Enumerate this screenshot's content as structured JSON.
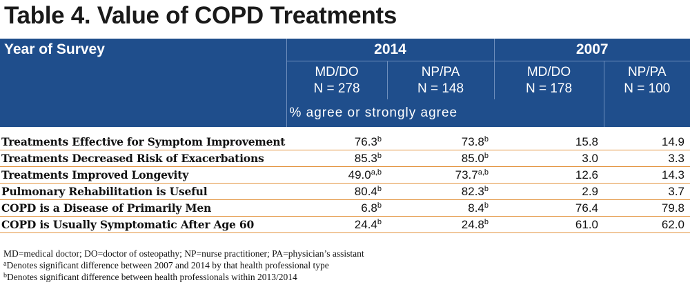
{
  "title": "Table 4. Value of COPD Treatments",
  "header": {
    "year_label": "Year of Survey",
    "years": [
      "2014",
      "2007"
    ],
    "groups": [
      {
        "role": "MD/DO",
        "n": "N = 278"
      },
      {
        "role": "NP/PA",
        "n": "N = 148"
      },
      {
        "role": "MD/DO",
        "n": "N = 178"
      },
      {
        "role": "NP/PA",
        "n": "N = 100"
      }
    ],
    "measure": "% agree or strongly agree"
  },
  "rows": [
    {
      "label": "Treatments Effective for Symptom Improvement",
      "cells": [
        {
          "v": "76.3",
          "s": "b"
        },
        {
          "v": "73.8",
          "s": "b"
        },
        {
          "v": "15.8",
          "s": ""
        },
        {
          "v": "14.9",
          "s": ""
        }
      ]
    },
    {
      "label": "Treatments Decreased Risk of Exacerbations",
      "cells": [
        {
          "v": "85.3",
          "s": "b"
        },
        {
          "v": "85.0",
          "s": "b"
        },
        {
          "v": "3.0",
          "s": ""
        },
        {
          "v": "3.3",
          "s": ""
        }
      ]
    },
    {
      "label": "Treatments Improved Longevity",
      "cells": [
        {
          "v": "49.0",
          "s": "a,b"
        },
        {
          "v": "73.7",
          "s": "a,b"
        },
        {
          "v": "12.6",
          "s": ""
        },
        {
          "v": "14.3",
          "s": ""
        }
      ]
    },
    {
      "label": "Pulmonary Rehabilitation is Useful",
      "cells": [
        {
          "v": "80.4",
          "s": "b"
        },
        {
          "v": "82.3",
          "s": "b"
        },
        {
          "v": "2.9",
          "s": ""
        },
        {
          "v": "3.7",
          "s": ""
        }
      ]
    },
    {
      "label": "COPD is a Disease of Primarily Men",
      "cells": [
        {
          "v": "6.8",
          "s": "b"
        },
        {
          "v": "8.4",
          "s": "b"
        },
        {
          "v": "76.4",
          "s": ""
        },
        {
          "v": "79.8",
          "s": ""
        }
      ]
    },
    {
      "label": "COPD is Usually Symptomatic After Age 60",
      "cells": [
        {
          "v": "24.4",
          "s": "b"
        },
        {
          "v": "24.8",
          "s": "b"
        },
        {
          "v": "61.0",
          "s": ""
        },
        {
          "v": "62.0",
          "s": ""
        }
      ]
    }
  ],
  "notes": {
    "abbrev": "MD=medical doctor; DO=doctor of osteopathy; NP=nurse practitioner; PA=physician’s assistant",
    "a_mark": "a",
    "a_text": "Denotes significant difference between 2007 and 2014 by that health professional type",
    "b_mark": "b",
    "b_text": "Denotes significant difference between health professionals within 2013/2014"
  },
  "colors": {
    "header_bg": "#1f4e8c",
    "row_rule": "#e2923c"
  }
}
